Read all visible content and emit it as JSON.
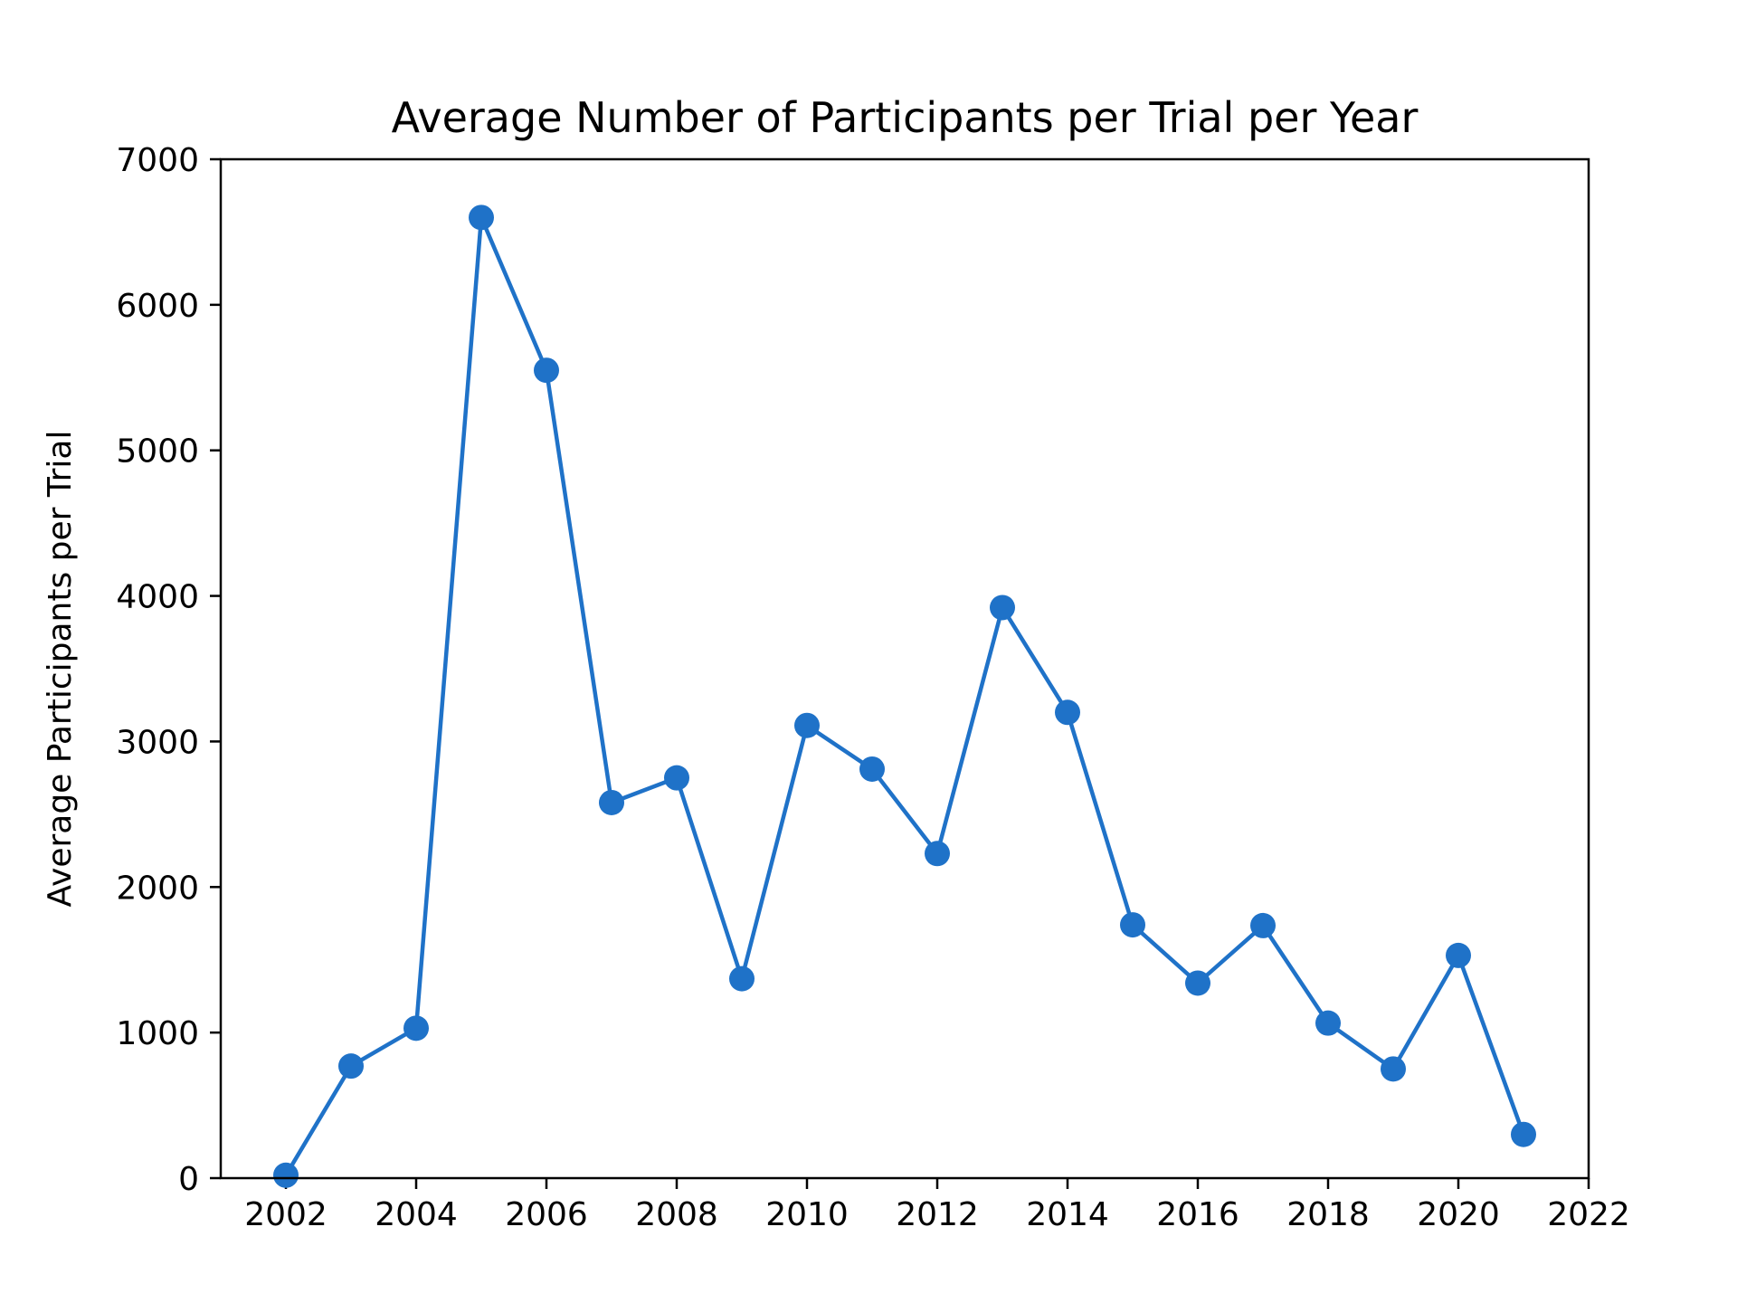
{
  "chart_data": {
    "type": "line",
    "title": "Average Number of Participants per Trial per Year",
    "xlabel": "",
    "ylabel": "Average Participants per Trial",
    "xlim": [
      2001,
      2022
    ],
    "ylim": [
      0,
      7000
    ],
    "xticks": [
      2002,
      2004,
      2006,
      2008,
      2010,
      2012,
      2014,
      2016,
      2018,
      2020,
      2022
    ],
    "yticks": [
      0,
      1000,
      2000,
      3000,
      4000,
      5000,
      6000,
      7000
    ],
    "grid": false,
    "series": [
      {
        "color": "#1f72c8",
        "marker": "circle",
        "x": [
          2002,
          2003,
          2004,
          2005,
          2006,
          2007,
          2008,
          2009,
          2010,
          2011,
          2012,
          2013,
          2014,
          2015,
          2016,
          2017,
          2018,
          2019,
          2020,
          2021
        ],
        "y": [
          20,
          770,
          1030,
          6600,
          5550,
          2580,
          2750,
          1370,
          3110,
          2810,
          2230,
          3920,
          3200,
          1740,
          1340,
          1735,
          1065,
          750,
          1530,
          300
        ]
      }
    ]
  }
}
